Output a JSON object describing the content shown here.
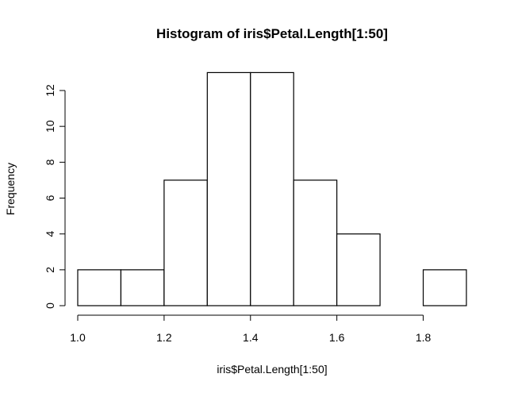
{
  "chart_data": {
    "type": "bar",
    "title": "Histogram of iris$Petal.Length[1:50]",
    "xlabel": "iris$Petal.Length[1:50]",
    "ylabel": "Frequency",
    "bin_edges": [
      1.0,
      1.1,
      1.2,
      1.3,
      1.4,
      1.5,
      1.6,
      1.7,
      1.8,
      1.9
    ],
    "values": [
      2,
      2,
      7,
      13,
      13,
      7,
      4,
      0,
      2
    ],
    "xlim": [
      1.0,
      1.9
    ],
    "ylim": [
      0,
      12
    ],
    "x_ticks": [
      "1.0",
      "1.2",
      "1.4",
      "1.6",
      "1.8"
    ],
    "y_ticks": [
      "0",
      "2",
      "4",
      "6",
      "8",
      "10",
      "12"
    ],
    "grid": false
  }
}
